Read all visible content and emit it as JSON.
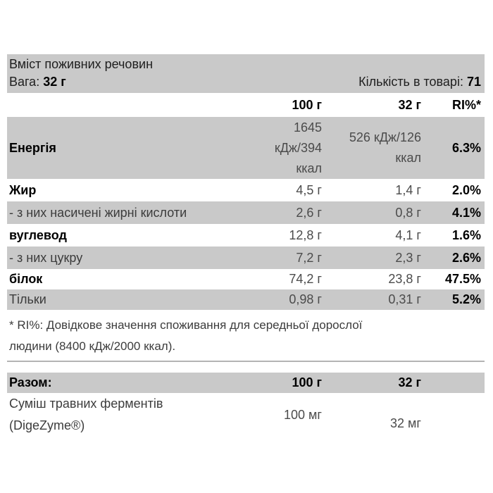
{
  "header": {
    "title": "Вміст поживних речовин",
    "weight_label": "Вага:",
    "weight_value": "32 г",
    "quantity_label": "Кількість в товарі:",
    "quantity_value": "71"
  },
  "columns": {
    "c100": "100 г",
    "c32": "32 г",
    "ri": "RI%*"
  },
  "rows": [
    {
      "label": "Енергія",
      "v100": "1645\nкДж/394\nккал",
      "v32": "526 кДж/126\nккал",
      "ri": "6.3%"
    },
    {
      "label": "Жир",
      "v100": "4,5 г",
      "v32": "1,4 г",
      "ri": "2.0%"
    },
    {
      "label": "- з них насичені жирні кислоти",
      "v100": "2,6 г",
      "v32": "0,8 г",
      "ri": "4.1%"
    },
    {
      "label": "вуглевод",
      "v100": "12,8 г",
      "v32": "4,1 г",
      "ri": "1.6%"
    },
    {
      "label": "- з них цукру",
      "v100": "7,2 г",
      "v32": "2,3 г",
      "ri": "2.6%"
    },
    {
      "label": "білок",
      "v100": "74,2 г",
      "v32": "23,8 г",
      "ri": "47.5%"
    },
    {
      "label": "Тільки",
      "v100": "0,98 г",
      "v32": "0,31 г",
      "ri": "5.2%"
    }
  ],
  "footnote": "* RI%: Довідкове значення споживання для середньої дорослої\nлюдини (8400 кДж/2000 ккал).",
  "totals": {
    "label": "Разом:",
    "c100": "100 г",
    "c32": "32 г",
    "items": [
      {
        "label": "Суміш травних ферментів\n(DigeZyme®)",
        "v100": "100 мг",
        "v32": "32 мг"
      }
    ]
  },
  "colors": {
    "row_shade": "#c9c9c9",
    "divider": "#b4b4b4"
  }
}
